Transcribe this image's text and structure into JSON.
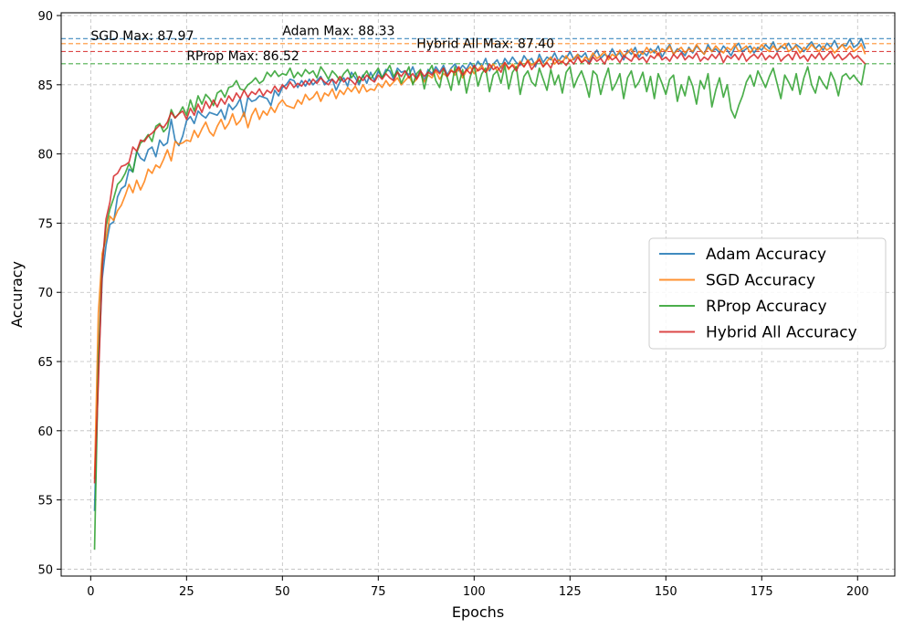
{
  "chart_data": {
    "type": "line",
    "title": "",
    "xlabel": "Epochs",
    "ylabel": "Accuracy",
    "xlim": [
      -7.7,
      209.7
    ],
    "ylim": [
      49.5,
      90.2
    ],
    "xticks": [
      0,
      25,
      50,
      75,
      100,
      125,
      150,
      175,
      200
    ],
    "yticks": [
      50,
      55,
      60,
      65,
      70,
      75,
      80,
      85,
      90
    ],
    "grid": true,
    "legend_position": "center-right",
    "x_start": 1,
    "series": [
      {
        "name": "Adam Accuracy",
        "color": "#1f77b4",
        "max_value": 88.33,
        "max_label": "Adam Max: 88.33",
        "values": [
          54.2,
          64.5,
          71.0,
          73.4,
          74.9,
          75.1,
          76.9,
          77.5,
          77.7,
          78.9,
          78.7,
          80.2,
          79.7,
          79.5,
          80.3,
          80.5,
          79.8,
          81.0,
          80.6,
          80.8,
          82.5,
          81.0,
          80.6,
          81.3,
          82.4,
          82.7,
          82.2,
          83.1,
          82.8,
          82.6,
          83.0,
          82.9,
          82.8,
          83.2,
          82.5,
          83.6,
          83.2,
          83.5,
          84.0,
          82.7,
          84.1,
          83.8,
          83.9,
          84.2,
          84.1,
          84.0,
          83.5,
          84.6,
          84.2,
          84.8,
          85.0,
          85.4,
          85.3,
          84.8,
          85.3,
          84.9,
          85.4,
          85.0,
          85.3,
          85.6,
          85.0,
          85.3,
          85.4,
          84.6,
          85.2,
          85.5,
          84.9,
          85.9,
          85.5,
          85.0,
          85.7,
          85.1,
          85.9,
          85.3,
          86.0,
          85.5,
          86.1,
          86.0,
          85.4,
          86.2,
          85.9,
          86.0,
          85.7,
          86.3,
          85.5,
          86.0,
          85.3,
          86.1,
          85.8,
          86.3,
          85.9,
          86.4,
          85.7,
          86.2,
          86.5,
          86.0,
          86.4,
          86.1,
          86.6,
          86.2,
          86.7,
          86.3,
          86.9,
          86.0,
          86.5,
          86.8,
          86.2,
          86.9,
          86.5,
          87.0,
          86.6,
          86.4,
          87.1,
          86.7,
          86.9,
          86.3,
          87.2,
          86.6,
          87.0,
          86.8,
          87.3,
          86.7,
          87.1,
          86.9,
          87.4,
          86.8,
          87.2,
          87.0,
          87.3,
          86.6,
          87.1,
          87.5,
          86.9,
          87.2,
          87.0,
          87.6,
          87.1,
          87.3,
          86.8,
          87.5,
          87.2,
          87.7,
          87.0,
          87.4,
          87.1,
          87.6,
          87.3,
          87.8,
          87.0,
          87.5,
          87.9,
          87.2,
          87.6,
          87.4,
          87.1,
          87.7,
          87.3,
          87.8,
          87.5,
          87.2,
          87.9,
          87.4,
          87.6,
          87.3,
          87.8,
          87.5,
          87.1,
          87.7,
          88.0,
          87.4,
          87.6,
          87.8,
          87.3,
          87.7,
          87.5,
          87.9,
          87.6,
          88.1,
          87.4,
          87.8,
          87.6,
          88.0,
          87.5,
          87.9,
          87.7,
          87.4,
          87.8,
          88.1,
          87.6,
          87.9,
          87.5,
          88.0,
          87.7,
          88.2,
          87.6,
          87.9,
          87.8,
          88.3,
          87.7,
          87.9,
          88.33,
          87.6
        ]
      },
      {
        "name": "SGD Accuracy",
        "color": "#ff7f0e",
        "max_value": 87.97,
        "max_label": "SGD Max: 87.97",
        "values": [
          56.5,
          68.5,
          72.8,
          73.9,
          75.5,
          75.2,
          75.9,
          76.3,
          77.0,
          77.8,
          77.2,
          78.1,
          77.4,
          78.0,
          78.9,
          78.6,
          79.2,
          79.0,
          79.6,
          80.3,
          79.5,
          80.9,
          80.7,
          80.8,
          81.0,
          80.9,
          81.7,
          81.2,
          81.8,
          82.3,
          81.6,
          81.3,
          82.0,
          82.5,
          81.8,
          82.2,
          82.9,
          82.1,
          82.4,
          83.0,
          81.9,
          82.8,
          83.3,
          82.5,
          83.1,
          82.8,
          83.4,
          83.0,
          83.6,
          83.9,
          83.5,
          83.4,
          83.3,
          83.9,
          83.6,
          84.3,
          83.9,
          84.1,
          84.5,
          83.8,
          84.4,
          84.2,
          84.7,
          84.0,
          84.6,
          84.3,
          84.8,
          84.5,
          84.9,
          84.4,
          85.0,
          84.5,
          84.7,
          84.6,
          85.1,
          84.8,
          85.3,
          84.9,
          85.2,
          85.5,
          85.0,
          85.3,
          85.6,
          85.1,
          85.4,
          85.8,
          85.2,
          85.7,
          85.5,
          86.0,
          85.4,
          85.8,
          85.6,
          86.1,
          85.7,
          86.2,
          85.5,
          86.0,
          86.3,
          85.8,
          86.1,
          86.4,
          85.9,
          86.2,
          86.5,
          86.0,
          86.3,
          86.6,
          86.1,
          86.5,
          86.2,
          86.7,
          86.3,
          86.8,
          86.4,
          86.6,
          86.9,
          86.3,
          86.7,
          87.0,
          86.5,
          86.8,
          86.6,
          87.1,
          86.7,
          86.9,
          87.2,
          86.6,
          87.0,
          86.8,
          87.3,
          86.9,
          87.1,
          87.4,
          86.8,
          87.2,
          87.0,
          87.5,
          87.1,
          87.3,
          87.6,
          87.0,
          87.4,
          87.2,
          87.7,
          87.3,
          87.5,
          87.1,
          87.6,
          87.4,
          87.8,
          87.2,
          87.5,
          87.7,
          87.3,
          87.6,
          87.4,
          87.9,
          87.5,
          87.2,
          87.7,
          87.4,
          87.8,
          87.5,
          87.3,
          87.7,
          87.5,
          87.9,
          87.4,
          87.6,
          87.8,
          87.3,
          87.7,
          87.5,
          87.9,
          87.6,
          87.4,
          87.8,
          87.5,
          87.7,
          87.97,
          87.4,
          87.6,
          87.8,
          87.3,
          87.7,
          87.5,
          87.9,
          87.6,
          87.4,
          87.8,
          87.5,
          87.7,
          87.3,
          87.6,
          87.9,
          87.5,
          87.8,
          87.4,
          87.6,
          87.9,
          87.2
        ]
      },
      {
        "name": "RProp Accuracy",
        "color": "#2ca02c",
        "max_value": 86.52,
        "max_label": "RProp Max: 86.52",
        "values": [
          51.4,
          65.0,
          72.0,
          74.8,
          76.0,
          76.8,
          77.8,
          78.1,
          78.6,
          79.3,
          78.7,
          80.1,
          80.8,
          81.0,
          81.4,
          80.9,
          82.0,
          82.2,
          81.6,
          81.9,
          83.2,
          82.6,
          82.9,
          83.4,
          82.8,
          83.9,
          83.1,
          84.2,
          83.6,
          84.3,
          84.0,
          83.5,
          84.4,
          84.6,
          84.1,
          84.8,
          84.9,
          85.3,
          84.7,
          84.6,
          85.0,
          85.2,
          85.5,
          85.1,
          85.3,
          85.9,
          85.6,
          86.0,
          85.6,
          85.8,
          85.7,
          86.2,
          85.5,
          85.9,
          85.6,
          86.1,
          85.8,
          86.0,
          85.5,
          86.3,
          85.9,
          85.4,
          86.0,
          85.7,
          85.3,
          85.8,
          86.1,
          85.5,
          85.9,
          85.2,
          85.6,
          86.0,
          85.4,
          85.8,
          86.2,
          85.5,
          85.9,
          86.4,
          85.6,
          86.0,
          85.1,
          85.7,
          86.3,
          85.0,
          85.8,
          86.1,
          84.7,
          85.9,
          86.4,
          85.3,
          84.8,
          86.2,
          85.5,
          84.6,
          86.3,
          85.0,
          86.1,
          84.4,
          85.6,
          86.4,
          84.9,
          85.8,
          86.2,
          84.5,
          85.7,
          86.0,
          85.1,
          86.4,
          84.7,
          85.9,
          86.3,
          84.3,
          85.6,
          86.0,
          85.2,
          84.9,
          86.2,
          85.4,
          84.6,
          86.1,
          85.0,
          85.7,
          84.4,
          85.9,
          86.3,
          84.8,
          85.5,
          86.0,
          85.2,
          84.1,
          86.0,
          85.7,
          84.3,
          85.4,
          86.2,
          84.6,
          85.1,
          85.8,
          84.0,
          85.5,
          86.0,
          84.8,
          85.2,
          85.9,
          84.5,
          85.6,
          84.0,
          85.8,
          85.1,
          84.3,
          85.4,
          85.7,
          83.8,
          85.0,
          84.2,
          85.6,
          84.9,
          83.6,
          85.3,
          84.7,
          85.8,
          83.4,
          84.6,
          85.5,
          84.1,
          85.0,
          83.2,
          82.6,
          83.5,
          84.2,
          85.2,
          85.7,
          84.9,
          86.0,
          85.4,
          84.8,
          85.6,
          86.2,
          85.1,
          84.0,
          85.7,
          85.2,
          84.6,
          85.8,
          84.3,
          85.5,
          86.3,
          85.0,
          84.4,
          85.6,
          85.1,
          84.7,
          85.9,
          85.3,
          84.2,
          85.6,
          85.8,
          85.4,
          85.7,
          85.3,
          85.0,
          86.52
        ]
      },
      {
        "name": "Hybrid All Accuracy",
        "color": "#d62728",
        "max_value": 87.4,
        "max_label": "Hybrid All Max: 87.40",
        "values": [
          56.2,
          63.5,
          71.8,
          75.3,
          76.5,
          78.4,
          78.6,
          79.1,
          79.2,
          79.4,
          80.5,
          80.2,
          81.0,
          80.9,
          81.3,
          81.5,
          81.8,
          82.1,
          81.9,
          82.3,
          83.0,
          82.6,
          82.9,
          83.1,
          82.5,
          83.3,
          82.8,
          83.6,
          83.0,
          83.8,
          83.3,
          83.9,
          83.4,
          84.0,
          83.6,
          84.2,
          83.8,
          84.4,
          84.0,
          84.6,
          84.1,
          84.5,
          84.3,
          84.7,
          84.2,
          84.6,
          84.4,
          84.9,
          84.5,
          85.0,
          84.7,
          85.2,
          84.8,
          85.1,
          84.9,
          85.3,
          85.0,
          85.4,
          85.1,
          85.5,
          85.2,
          85.0,
          85.4,
          85.1,
          85.6,
          85.2,
          85.5,
          85.3,
          85.0,
          85.6,
          85.3,
          85.7,
          85.4,
          85.2,
          85.7,
          85.4,
          85.8,
          85.5,
          85.3,
          85.9,
          85.6,
          86.0,
          85.5,
          85.8,
          85.4,
          86.0,
          85.6,
          85.9,
          85.7,
          86.1,
          85.8,
          86.2,
          85.6,
          86.0,
          85.9,
          86.3,
          85.7,
          86.1,
          85.8,
          86.4,
          86.0,
          86.2,
          85.9,
          86.5,
          86.1,
          86.3,
          85.9,
          86.6,
          86.2,
          86.4,
          86.0,
          86.6,
          86.3,
          86.7,
          86.1,
          86.5,
          86.8,
          86.3,
          86.6,
          86.2,
          86.9,
          86.5,
          86.7,
          86.4,
          86.8,
          86.5,
          87.0,
          86.6,
          86.8,
          86.5,
          87.0,
          86.7,
          86.9,
          86.5,
          87.1,
          86.8,
          87.0,
          86.6,
          87.1,
          86.9,
          86.7,
          87.2,
          86.8,
          87.0,
          86.6,
          87.1,
          86.9,
          87.3,
          86.8,
          87.0,
          86.7,
          87.2,
          86.9,
          87.3,
          86.8,
          87.1,
          86.9,
          87.3,
          86.7,
          87.0,
          86.8,
          87.2,
          86.9,
          87.3,
          86.6,
          87.1,
          86.9,
          87.2,
          86.8,
          87.3,
          86.7,
          87.0,
          87.2,
          86.9,
          87.3,
          86.8,
          87.1,
          86.9,
          87.3,
          86.7,
          87.0,
          87.2,
          86.8,
          87.4,
          86.9,
          87.1,
          86.7,
          87.2,
          86.9,
          87.3,
          86.8,
          87.1,
          87.4,
          86.9,
          87.2,
          86.8,
          87.0,
          87.3,
          86.9,
          87.1,
          86.8,
          86.5
        ]
      }
    ]
  }
}
